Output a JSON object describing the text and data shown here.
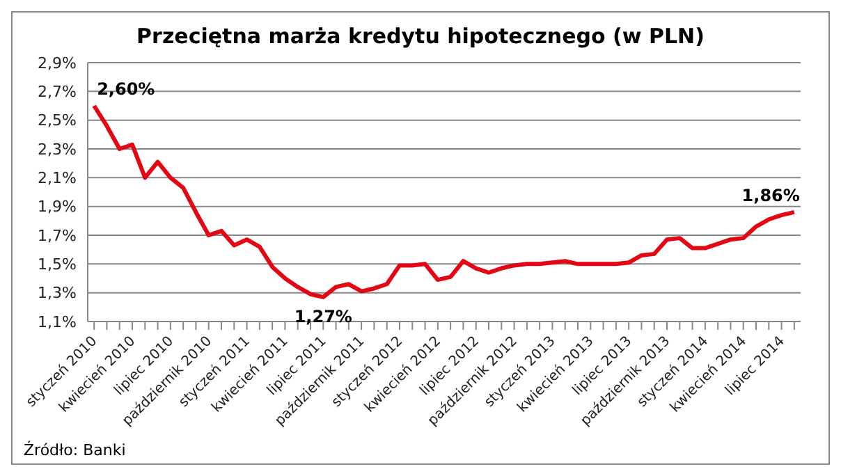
{
  "chart_data": {
    "type": "line",
    "title": "Przeciętna marża kredytu hipotecznego (w PLN)",
    "categories": [
      "styczeń 2010",
      null,
      null,
      "kwiecień 2010",
      null,
      null,
      "lipiec 2010",
      null,
      null,
      "październik 2010",
      null,
      null,
      "styczeń 2011",
      null,
      null,
      "kwiecień 2011",
      null,
      null,
      "lipiec 2011",
      null,
      null,
      "październik 2011",
      null,
      null,
      "styczeń 2012",
      null,
      null,
      "kwiecień 2012",
      null,
      null,
      "lipiec 2012",
      null,
      null,
      "październik 2012",
      null,
      null,
      "styczeń 2013",
      null,
      null,
      "kwiecień 2013",
      null,
      null,
      "lipiec 2013",
      null,
      null,
      "październik 2013",
      null,
      null,
      "styczeń 2014",
      null,
      null,
      "kwiecień 2014",
      null,
      null,
      "lipiec 2014",
      null
    ],
    "series": [
      {
        "color": "#e30613",
        "values": [
          2.6,
          2.46,
          2.3,
          2.33,
          2.1,
          2.21,
          2.1,
          2.03,
          1.86,
          1.7,
          1.73,
          1.63,
          1.67,
          1.62,
          1.48,
          1.4,
          1.34,
          1.29,
          1.27,
          1.34,
          1.36,
          1.31,
          1.33,
          1.36,
          1.49,
          1.49,
          1.5,
          1.39,
          1.41,
          1.52,
          1.47,
          1.44,
          1.47,
          1.49,
          1.5,
          1.5,
          1.51,
          1.52,
          1.5,
          1.5,
          1.5,
          1.5,
          1.51,
          1.56,
          1.57,
          1.67,
          1.68,
          1.61,
          1.61,
          1.64,
          1.67,
          1.68,
          1.76,
          1.81,
          1.84,
          1.86
        ],
        "value_labels": [
          "2,60%",
          null,
          null,
          null,
          null,
          null,
          null,
          null,
          null,
          null,
          null,
          null,
          null,
          null,
          null,
          null,
          null,
          null,
          "1,27%",
          null,
          null,
          null,
          null,
          null,
          null,
          null,
          null,
          null,
          null,
          null,
          null,
          null,
          null,
          null,
          null,
          null,
          null,
          null,
          null,
          null,
          null,
          null,
          null,
          null,
          null,
          null,
          null,
          null,
          null,
          null,
          null,
          null,
          null,
          null,
          null,
          "1,86%"
        ]
      }
    ],
    "ylim": [
      1.1,
      2.9
    ],
    "yticks": [
      {
        "value": 1.1,
        "label": "1,1%"
      },
      {
        "value": 1.3,
        "label": "1,3%"
      },
      {
        "value": 1.5,
        "label": "1,5%"
      },
      {
        "value": 1.7,
        "label": "1,7%"
      },
      {
        "value": 1.9,
        "label": "1,9%"
      },
      {
        "value": 2.1,
        "label": "2,1%"
      },
      {
        "value": 2.3,
        "label": "2,3%"
      },
      {
        "value": 2.5,
        "label": "2,5%"
      },
      {
        "value": 2.7,
        "label": "2,7%"
      },
      {
        "value": 2.9,
        "label": "2,9%"
      }
    ],
    "grid": "y",
    "legend": false,
    "marker": "none",
    "line_style": "solid",
    "annotations": [
      "Źródło: Banki"
    ]
  }
}
